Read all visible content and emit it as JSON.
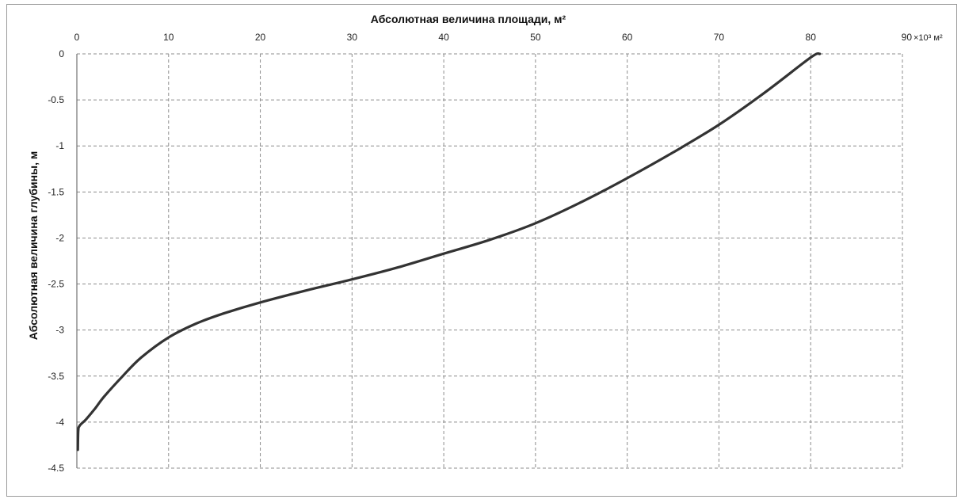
{
  "chart_data": {
    "type": "line",
    "title": "",
    "xlabel": "Абсолютная величина площади, м²",
    "ylabel": "Абсолютная величина глубины, м",
    "x_axis_position": "top",
    "x_unit_label": "×10³ м²",
    "xlim": [
      0,
      90
    ],
    "ylim": [
      -4.5,
      0
    ],
    "x_ticks": [
      0,
      10,
      20,
      30,
      40,
      50,
      60,
      70,
      80,
      90
    ],
    "y_ticks": [
      0,
      -0.5,
      -1,
      -1.5,
      -2,
      -2.5,
      -3,
      -3.5,
      -4,
      -4.5
    ],
    "x_tick_labels": [
      "0",
      "10",
      "20",
      "30",
      "40",
      "50",
      "60",
      "70",
      "80",
      "90"
    ],
    "y_tick_labels": [
      "0",
      "-0.5",
      "-1",
      "-1.5",
      "-2",
      "-2.5",
      "-3",
      "-3.5",
      "-4",
      "-4.5"
    ],
    "grid": true,
    "grid_style": "dashed",
    "line_color": "#333333",
    "grid_color": "#8c8c8c",
    "series": [
      {
        "x": [
          0.1,
          0.15,
          0.3,
          1,
          2,
          3,
          5,
          7,
          10,
          13,
          16,
          20,
          25,
          30,
          35,
          40,
          45,
          50,
          55,
          60,
          65,
          70,
          75,
          80,
          81
        ],
        "y": [
          -4.3,
          -4.1,
          -4.04,
          -3.97,
          -3.85,
          -3.72,
          -3.5,
          -3.3,
          -3.08,
          -2.93,
          -2.82,
          -2.7,
          -2.57,
          -2.45,
          -2.32,
          -2.17,
          -2.02,
          -1.84,
          -1.61,
          -1.35,
          -1.07,
          -0.77,
          -0.42,
          -0.04,
          0
        ]
      }
    ]
  }
}
